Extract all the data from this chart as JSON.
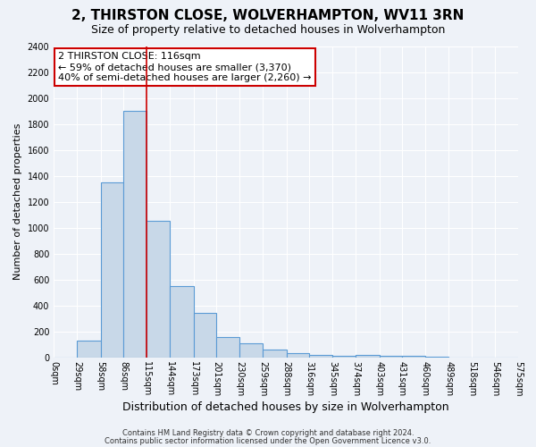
{
  "title": "2, THIRSTON CLOSE, WOLVERHAMPTON, WV11 3RN",
  "subtitle": "Size of property relative to detached houses in Wolverhampton",
  "xlabel": "Distribution of detached houses by size in Wolverhampton",
  "ylabel": "Number of detached properties",
  "bar_values": [
    0,
    125,
    1350,
    1900,
    1050,
    550,
    340,
    155,
    105,
    60,
    30,
    20,
    10,
    20,
    10,
    10,
    5,
    0,
    0,
    0
  ],
  "bin_edges": [
    0,
    29,
    58,
    86,
    115,
    144,
    173,
    201,
    230,
    259,
    288,
    316,
    345,
    374,
    403,
    431,
    460,
    489,
    518,
    546,
    575
  ],
  "tick_labels": [
    "0sqm",
    "29sqm",
    "58sqm",
    "86sqm",
    "115sqm",
    "144sqm",
    "173sqm",
    "201sqm",
    "230sqm",
    "259sqm",
    "288sqm",
    "316sqm",
    "345sqm",
    "374sqm",
    "403sqm",
    "431sqm",
    "460sqm",
    "489sqm",
    "518sqm",
    "546sqm",
    "575sqm"
  ],
  "bar_color": "#c8d8e8",
  "bar_edge_color": "#5b9bd5",
  "property_line_x": 115,
  "property_line_color": "#cc0000",
  "ylim": [
    0,
    2400
  ],
  "yticks": [
    0,
    200,
    400,
    600,
    800,
    1000,
    1200,
    1400,
    1600,
    1800,
    2000,
    2200,
    2400
  ],
  "annotation_title": "2 THIRSTON CLOSE: 116sqm",
  "annotation_line1": "← 59% of detached houses are smaller (3,370)",
  "annotation_line2": "40% of semi-detached houses are larger (2,260) →",
  "annotation_box_color": "#ffffff",
  "annotation_box_edgecolor": "#cc0000",
  "footer1": "Contains HM Land Registry data © Crown copyright and database right 2024.",
  "footer2": "Contains public sector information licensed under the Open Government Licence v3.0.",
  "bg_color": "#eef2f8",
  "plot_bg_color": "#eef2f8",
  "grid_color": "#ffffff",
  "title_fontsize": 11,
  "subtitle_fontsize": 9,
  "xlabel_fontsize": 9,
  "ylabel_fontsize": 8,
  "tick_fontsize": 7,
  "footer_fontsize": 6,
  "annotation_fontsize": 8
}
